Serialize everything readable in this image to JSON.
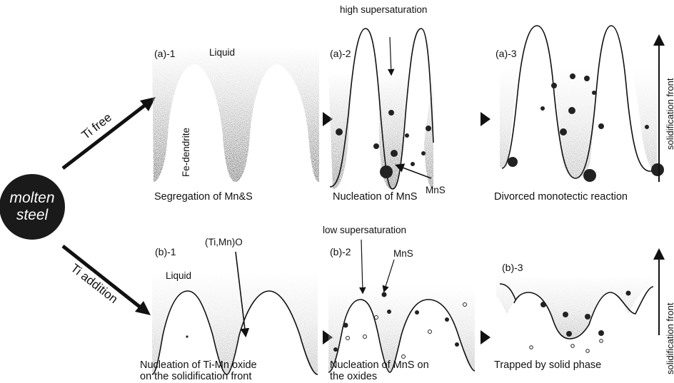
{
  "source": {
    "lines": [
      "molten",
      "steel"
    ]
  },
  "routes": [
    {
      "label": "Ti free",
      "axis_label": "solidification front",
      "panels": [
        {
          "id": "(a)-1",
          "caption": [
            "Segregation of Mn&S"
          ],
          "notes": [
            "Liquid",
            "Fe-dendrite"
          ]
        },
        {
          "id": "(a)-2",
          "caption": [
            "Nucleation of MnS"
          ],
          "notes": [
            "high supersaturation",
            "MnS"
          ]
        },
        {
          "id": "(a)-3",
          "caption": [
            "Divorced monotectic reaction"
          ]
        }
      ]
    },
    {
      "label": "Ti addition",
      "axis_label": "solidification front",
      "panels": [
        {
          "id": "(b)-1",
          "caption": [
            "Nucleation of Ti-Mn oxide",
            "on the solidification front"
          ],
          "notes": [
            "(Ti,Mn)O",
            "Liquid"
          ]
        },
        {
          "id": "(b)-2",
          "caption": [
            "Nucleation of MnS on",
            "the oxides"
          ],
          "notes": [
            "low supersaturation",
            "MnS"
          ]
        },
        {
          "id": "(b)-3",
          "caption": [
            "Trapped by solid phase"
          ]
        }
      ]
    }
  ]
}
